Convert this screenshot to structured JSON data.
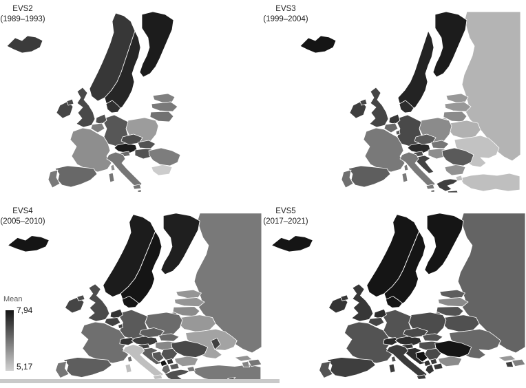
{
  "legend": {
    "title": "Mean",
    "max_label": "7,94",
    "min_label": "5,17",
    "max_value": 7.94,
    "min_value": 5.17,
    "high_color": "#141414",
    "low_color": "#d2d2d2"
  },
  "strip_color": "#c9c9c9",
  "chart_data": {
    "type": "choropleth",
    "variable": "Mean",
    "scale_min": 5.17,
    "scale_max": 7.94,
    "legend_position": "left-middle",
    "panels": [
      {
        "id": "evs2",
        "title": "EVS2",
        "subtitle": "(1989–1993)",
        "values": {
          "IS": 7.35,
          "NO": 7.4,
          "SE": 7.65,
          "FI": 7.8,
          "DK": 7.5,
          "GB": 7.15,
          "IE": 7.2,
          "FR": 6.15,
          "ES": 6.7,
          "PT": 6.45,
          "DE": 6.95,
          "NL": 7.05,
          "BE": 6.4,
          "AT": 7.8,
          "CZ": 7.1,
          "SK": 7.0,
          "HU": 7.0,
          "SI": 6.7,
          "PL": 5.95,
          "IT": 6.5,
          "RO": 6.4,
          "BG": 5.25,
          "EE": 6.35,
          "LV": 6.45,
          "LT": 6.55,
          "MT": 7.3
        }
      },
      {
        "id": "evs3",
        "title": "EVS3",
        "subtitle": "(1999–2004)",
        "values": {
          "IS": 7.9,
          "SE": 7.7,
          "FI": 7.8,
          "DK": 7.55,
          "GB": 7.2,
          "IE": 7.3,
          "FR": 6.45,
          "ES": 6.85,
          "PT": 6.6,
          "DE": 7.15,
          "NL": 7.4,
          "BE": 6.65,
          "LU": 6.9,
          "AT": 7.6,
          "CZ": 6.9,
          "SK": 6.5,
          "HU": 6.15,
          "SI": 7.1,
          "HR": 7.25,
          "PL": 6.2,
          "IT": 6.45,
          "RO": 6.9,
          "BG": 6.1,
          "GR": 7.3,
          "TR": 5.45,
          "RU": 5.6,
          "UA": 5.4,
          "BY": 5.65,
          "EE": 6.0,
          "LV": 6.0,
          "LT": 6.2,
          "MT": 7.2
        }
      },
      {
        "id": "evs4",
        "title": "EVS4",
        "subtitle": "(2005–2010)",
        "values": {
          "IS": 7.9,
          "NO": 7.8,
          "SE": 7.9,
          "FI": 7.75,
          "DK": 7.9,
          "GB": 7.1,
          "IE": 7.2,
          "FR": 6.6,
          "ES": 6.85,
          "PT": 6.5,
          "DE": 6.9,
          "NL": 7.45,
          "BE": 7.25,
          "LU": 7.25,
          "CH": 7.45,
          "AT": 7.35,
          "CZ": 6.85,
          "SK": 6.7,
          "HU": 6.25,
          "SI": 7.25,
          "HR": 6.85,
          "BA": 6.95,
          "RS": 7.0,
          "ME": 7.9,
          "XK": 7.45,
          "AL": 6.7,
          "MK": 6.9,
          "GR": 7.05,
          "BG": 6.0,
          "RO": 7.15,
          "MD": 7.25,
          "PL": 6.65,
          "IT": 5.45,
          "TR": 6.45,
          "RU": 6.45,
          "UA": 5.85,
          "BY": 6.0,
          "EE": 6.05,
          "LV": 6.05,
          "LT": 6.2,
          "GE": 6.1,
          "AM": 6.3,
          "AZ": 6.5,
          "MT": 7.2,
          "CY": 7.4
        }
      },
      {
        "id": "evs5",
        "title": "EVS5",
        "subtitle": "(2017–2021)",
        "values": {
          "IS": 7.9,
          "NO": 7.9,
          "SE": 7.9,
          "FI": 7.9,
          "DK": 7.9,
          "GB": 7.4,
          "IE": 7.45,
          "FR": 7.0,
          "ES": 7.3,
          "PT": 7.0,
          "DE": 7.0,
          "NL": 7.55,
          "BE": 7.2,
          "CH": 7.6,
          "AT": 7.55,
          "CZ": 7.15,
          "SK": 7.0,
          "HU": 7.05,
          "SI": 7.45,
          "HR": 7.55,
          "BA": 7.94,
          "RS": 7.15,
          "ME": 7.45,
          "XK": 7.35,
          "AL": 7.45,
          "MK": 7.4,
          "BG": 6.2,
          "RO": 7.9,
          "PL": 7.1,
          "IT": 7.35,
          "RU": 6.75,
          "UA": 6.7,
          "BY": 7.05,
          "EE": 6.85,
          "LV": 6.2,
          "LT": 7.0,
          "GE": 6.0,
          "AM": 7.3,
          "AZ": 6.35
        }
      }
    ]
  }
}
